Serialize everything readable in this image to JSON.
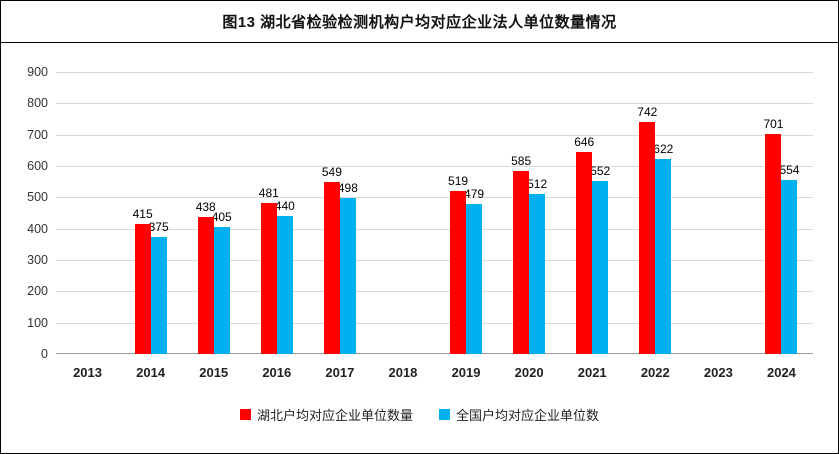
{
  "title": "图13 湖北省检验检测机构户均对应企业法人单位数量情况",
  "colors": {
    "hubei_series": "#FF0000",
    "national_series": "#00B0F0",
    "gridline": "#D9D9D9",
    "axis_line": "#9A9A9A",
    "border": "#000000",
    "background": "#FFFFFF"
  },
  "chart_data": {
    "type": "bar",
    "title": "图13 湖北省检验检测机构户均对应企业法人单位数量情况",
    "categories": [
      "2013",
      "2014",
      "2015",
      "2016",
      "2017",
      "2018",
      "2019",
      "2020",
      "2021",
      "2022",
      "2023",
      "2024"
    ],
    "series": [
      {
        "name": "湖北户均对应企业单位数量",
        "color": "#FF0000",
        "values": [
          null,
          415,
          438,
          481,
          549,
          null,
          519,
          585,
          646,
          742,
          null,
          701
        ]
      },
      {
        "name": "全国户均对应企业单位数",
        "color": "#00B0F0",
        "values": [
          null,
          375,
          405,
          440,
          498,
          null,
          479,
          512,
          552,
          622,
          null,
          554
        ]
      }
    ],
    "xlabel": "",
    "ylabel": "",
    "ylim": [
      0,
      900
    ],
    "yticks": [
      0,
      100,
      200,
      300,
      400,
      500,
      600,
      700,
      800,
      900
    ],
    "grid": true,
    "data_labels": true,
    "legend_position": "bottom"
  }
}
